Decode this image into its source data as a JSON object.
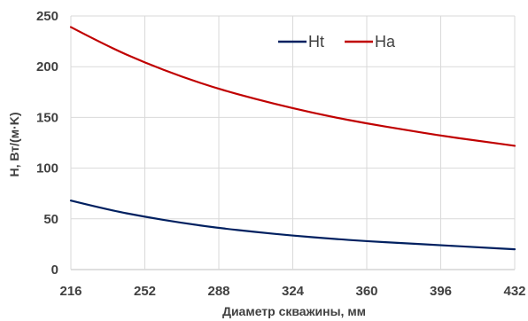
{
  "chart_data": {
    "type": "line",
    "title": "",
    "xlabel": "Диаметр скважины, мм",
    "ylabel": "H, Вт/(м·K)",
    "xlim": [
      216,
      432
    ],
    "ylim": [
      0,
      250
    ],
    "xticks": [
      216,
      252,
      288,
      324,
      360,
      396,
      432
    ],
    "yticks": [
      0,
      50,
      100,
      150,
      200,
      250
    ],
    "grid": true,
    "legend": "top-center",
    "series": [
      {
        "name": "Ht",
        "color": "#002060",
        "x": [
          216,
          234,
          252,
          270,
          288,
          306,
          324,
          342,
          360,
          378,
          396,
          414,
          432
        ],
        "y": [
          68,
          59,
          52,
          46,
          41,
          37,
          33.5,
          30.5,
          28,
          26,
          24,
          22,
          20
        ]
      },
      {
        "name": "Ha",
        "color": "#c00000",
        "x": [
          216,
          234,
          252,
          270,
          288,
          306,
          324,
          342,
          360,
          378,
          396,
          414,
          432
        ],
        "y": [
          239,
          220,
          204,
          190,
          178,
          168,
          159,
          151,
          144,
          138,
          132,
          127,
          122
        ]
      }
    ]
  }
}
